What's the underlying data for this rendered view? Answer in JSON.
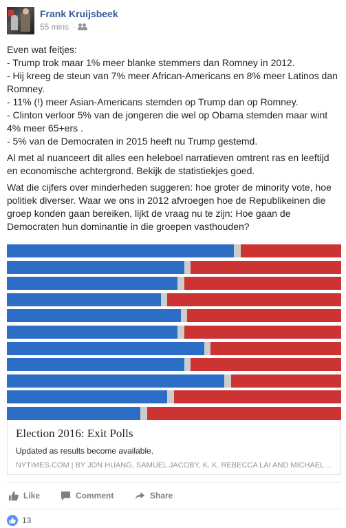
{
  "post": {
    "author": "Frank Kruijsbeek",
    "timestamp": "55 mins",
    "privacy_icon": "friends-icon",
    "paragraphs": [
      [
        "Even wat feitjes:",
        "- Trump trok maar 1% meer blanke stemmers dan Romney in 2012.",
        "- Hij kreeg de steun van 7% meer African-Americans en 8% meer Latinos dan Romney.",
        "- 11% (!) meer Asian-Americans stemden op Trump dan op Romney.",
        "- Clinton verloor 5% van de jongeren die wel op Obama stemden maar wint 4% meer 65+ers .",
        "- 5% van de Democraten in 2015 heeft nu Trump gestemd."
      ],
      [
        "Al met al nuanceert dit alles een heleboel narratieven omtrent ras en leeftijd en economische achtergrond. Bekijk de statistiekjes goed."
      ],
      [
        "Wat die cijfers over minderheden suggeren: hoe groter de minority vote, hoe politiek diverser. Waar we ons in 2012 afvroegen hoe de Republikeinen die groep konden gaan bereiken, lijkt de vraag nu te zijn: Hoe gaan de Democraten hun dominantie in die groepen vasthouden?"
      ]
    ]
  },
  "chart_data": {
    "type": "bar",
    "orientation": "horizontal-stacked",
    "colors": {
      "dem": "#2c6ec5",
      "other": "#cccccc",
      "rep": "#cc3333"
    },
    "rows": [
      {
        "dem": 68,
        "other": 2,
        "rep": 30
      },
      {
        "dem": 53,
        "other": 2,
        "rep": 45
      },
      {
        "dem": 51,
        "other": 2,
        "rep": 47
      },
      {
        "dem": 46,
        "other": 2,
        "rep": 52
      },
      {
        "dem": 52,
        "other": 2,
        "rep": 46
      },
      {
        "dem": 51,
        "other": 2,
        "rep": 47
      },
      {
        "dem": 59,
        "other": 2,
        "rep": 39
      },
      {
        "dem": 53,
        "other": 2,
        "rep": 45
      },
      {
        "dem": 65,
        "other": 2,
        "rep": 33
      },
      {
        "dem": 48,
        "other": 2,
        "rep": 50
      },
      {
        "dem": 40,
        "other": 2,
        "rep": 58
      }
    ]
  },
  "link": {
    "title": "Election 2016: Exit Polls",
    "description": "Updated as results become available.",
    "source": "NYTIMES.COM  |  BY JON HUANG, SAMUEL JACOBY, K. K. REBECCA LAI AND MICHAEL ..."
  },
  "actions": {
    "like_label": "Like",
    "comment_label": "Comment",
    "share_label": "Share"
  },
  "reactions": {
    "count": "13",
    "icon": "thumbs-up-icon"
  }
}
